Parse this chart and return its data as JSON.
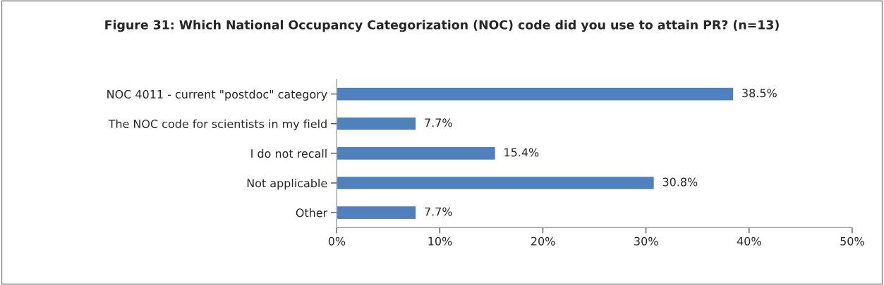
{
  "chart_data": {
    "type": "bar",
    "orientation": "horizontal",
    "title": "Figure 31: Which National Occupancy Categorization (NOC) code did you use to attain PR? (n=13)",
    "categories": [
      "NOC 4011 - current \"postdoc\" category",
      "The NOC code for scientists in my field",
      "I do not recall",
      "Not applicable",
      "Other"
    ],
    "values": [
      38.5,
      7.7,
      15.4,
      30.8,
      7.7
    ],
    "value_labels": [
      "38.5%",
      "7.7%",
      "15.4%",
      "30.8%",
      "7.7%"
    ],
    "color": "#4f81bd",
    "xlim": [
      0,
      50
    ],
    "xticks": [
      {
        "value": 0,
        "label": "0%"
      },
      {
        "value": 10,
        "label": "10%"
      },
      {
        "value": 20,
        "label": "20%"
      },
      {
        "value": 30,
        "label": "30%"
      },
      {
        "value": 40,
        "label": "40%"
      },
      {
        "value": 50,
        "label": "50%"
      }
    ],
    "grid": false,
    "legend": false
  }
}
